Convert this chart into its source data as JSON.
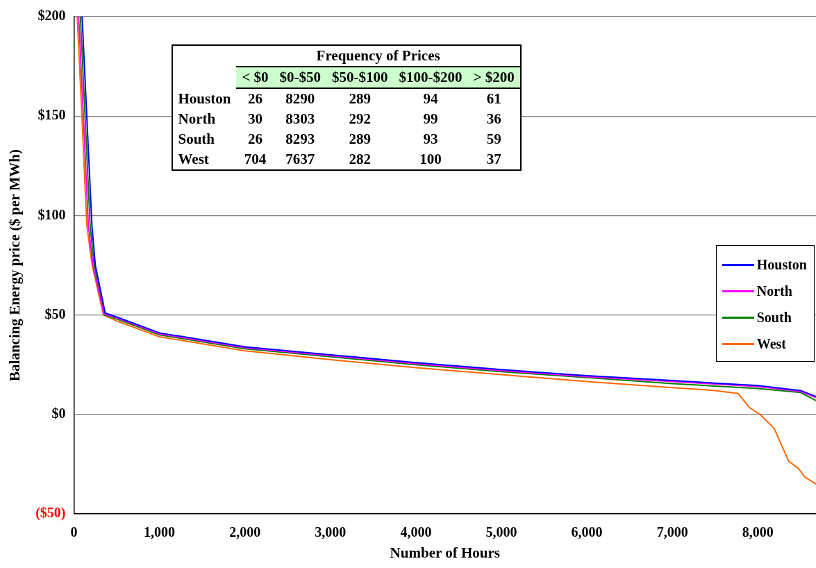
{
  "chart_data": {
    "type": "line",
    "xlabel": "Number of Hours",
    "ylabel": "Balancing Energy price ($ per MWh)",
    "xlim": [
      0,
      8680
    ],
    "ylim": [
      -50,
      200
    ],
    "xticks": [
      0,
      {
        "value": 1000,
        "label": "1,000"
      },
      {
        "value": 2000,
        "label": "2,000"
      },
      {
        "value": 3000,
        "label": "3,000"
      },
      {
        "value": 4000,
        "label": "4,000"
      },
      {
        "value": 5000,
        "label": "5,000"
      },
      {
        "value": 6000,
        "label": "6,000"
      },
      {
        "value": 7000,
        "label": "7,000"
      },
      {
        "value": 8000,
        "label": "8,000"
      }
    ],
    "yticks": [
      {
        "value": -50,
        "label": "($50)"
      },
      {
        "value": 0,
        "label": "$0"
      },
      {
        "value": 50,
        "label": "$50"
      },
      {
        "value": 100,
        "label": "$100"
      },
      {
        "value": 150,
        "label": "$150"
      },
      {
        "value": 200,
        "label": "$200"
      }
    ],
    "grid": "y",
    "legend": "right",
    "marker": "none",
    "line_style": "solid",
    "annotations": [
      "Frequency of Prices",
      "< $0",
      "$0-$50",
      "$50-$100",
      "$100-$200",
      "> $200",
      "Houston",
      "26",
      "8290",
      "289",
      "94",
      "61",
      "North",
      "30",
      "8303",
      "292",
      "99",
      "36",
      "South",
      "26",
      "8293",
      "289",
      "93",
      "59",
      "West",
      "704",
      "7637",
      "282",
      "100",
      "37"
    ],
    "series": [
      {
        "name": "Houston",
        "color": "#0000ff",
        "x": [
          95,
          150,
          210,
          250,
          365,
          500,
          1000,
          2000,
          3000,
          4000,
          5000,
          6000,
          7000,
          8000,
          8500,
          8680
        ],
        "values": [
          200,
          150,
          95,
          75,
          51,
          49,
          41,
          34,
          30,
          26,
          22.5,
          19.5,
          17,
          14.5,
          12,
          9
        ]
      },
      {
        "name": "North",
        "color": "#ff00ff",
        "x": [
          55,
          110,
          168,
          222,
          350,
          500,
          1000,
          2000,
          3000,
          4000,
          5000,
          6000,
          7000,
          8000,
          8500,
          8680
        ],
        "values": [
          200,
          150,
          95,
          75,
          50.5,
          48.5,
          40.5,
          33.5,
          29.5,
          25.5,
          22,
          19,
          16.5,
          14,
          11.5,
          8.5
        ]
      },
      {
        "name": "South",
        "color": "#008000",
        "x": [
          75,
          130,
          189,
          236,
          357,
          500,
          1000,
          2000,
          3000,
          4000,
          5000,
          6000,
          7000,
          8000,
          8500,
          8680
        ],
        "values": [
          200,
          150,
          95,
          75,
          50,
          48,
          40,
          33,
          29,
          25,
          21.5,
          18.5,
          15.5,
          13,
          11,
          7
        ]
      },
      {
        "name": "West",
        "color": "#ff6600",
        "x": [
          38,
          93,
          150,
          213,
          345,
          500,
          1000,
          2000,
          3000,
          4000,
          5000,
          6000,
          7000,
          7500,
          7770,
          7900,
          8025,
          8190,
          8360,
          8470,
          8550,
          8680
        ],
        "values": [
          200,
          150,
          95,
          75,
          50,
          47,
          39,
          32,
          27.5,
          23.5,
          20,
          16.5,
          13.5,
          12,
          10.5,
          3.5,
          0,
          -7,
          -23.5,
          -27,
          -31.5,
          -35
        ]
      }
    ]
  }
}
